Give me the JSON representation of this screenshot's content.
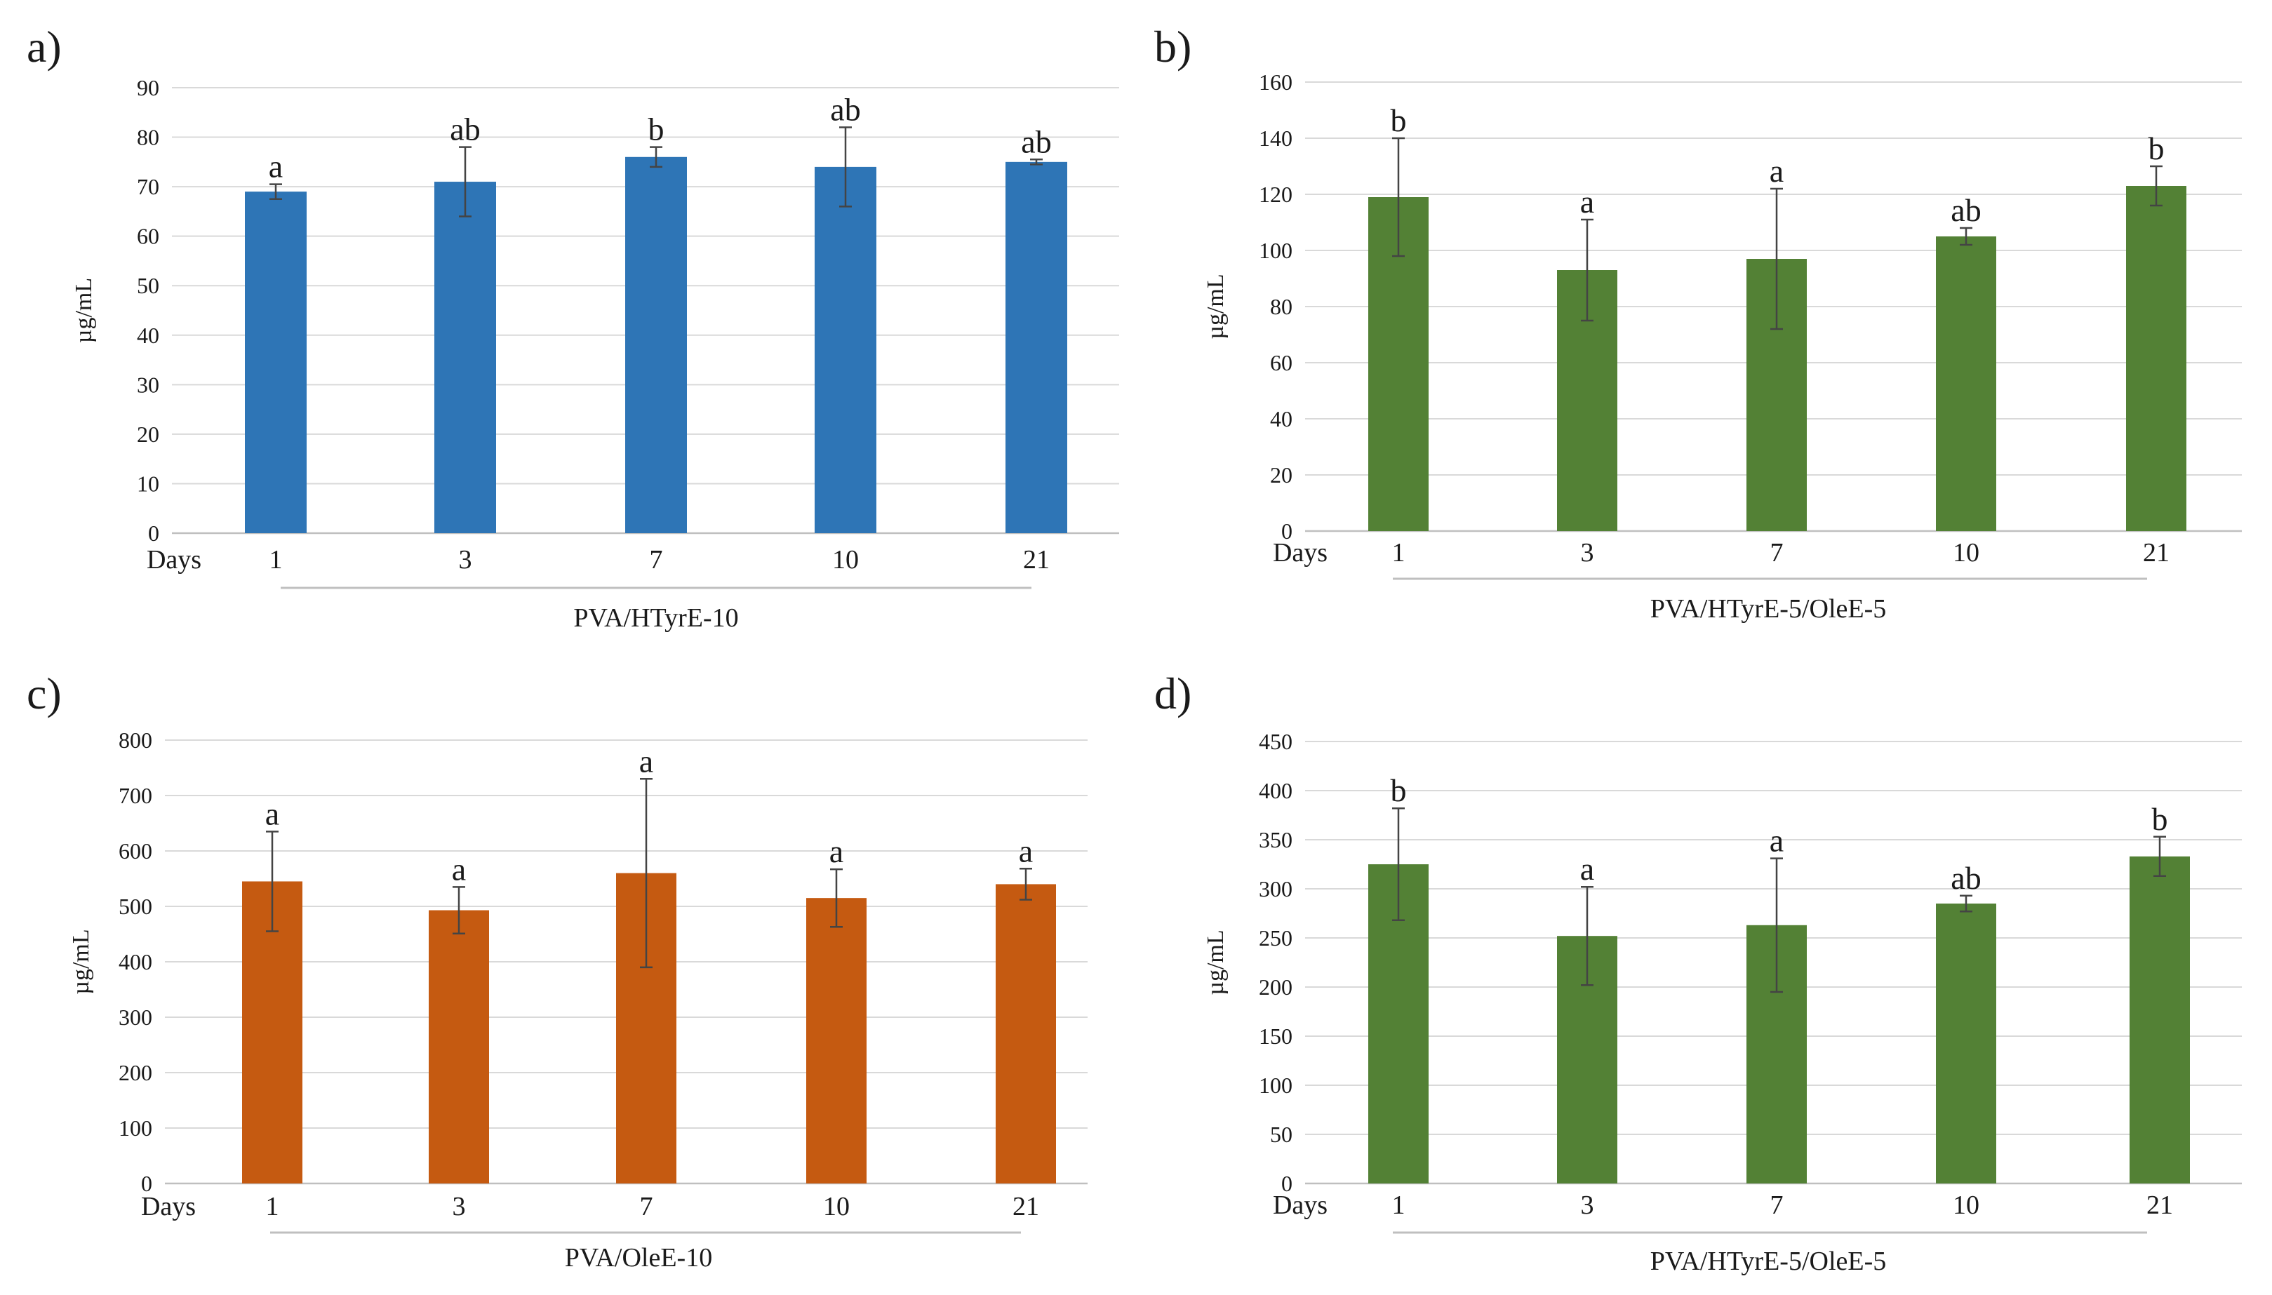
{
  "figure": {
    "panels": [
      "a)",
      "b)",
      "c)",
      "d)"
    ]
  },
  "chart_data": [
    {
      "type": "bar",
      "panel": "a)",
      "title": "",
      "xlabel": "PVA/HTyrE-10",
      "ylabel": "µg/mL",
      "x_axis_label": "Days",
      "categories": [
        "1",
        "3",
        "7",
        "10",
        "21"
      ],
      "values": [
        69,
        71,
        76,
        74,
        75
      ],
      "errors": [
        1.5,
        7,
        2,
        8,
        0.5
      ],
      "significance": [
        "a",
        "ab",
        "b",
        "ab",
        "ab"
      ],
      "ylim": [
        0,
        90
      ],
      "yticks": [
        0,
        10,
        20,
        30,
        40,
        50,
        60,
        70,
        80,
        90
      ],
      "color": "#2e75b6",
      "grid": true
    },
    {
      "type": "bar",
      "panel": "b)",
      "title": "",
      "xlabel": "PVA/HTyrE-5/OleE-5",
      "ylabel": "µg/mL",
      "x_axis_label": "Days",
      "categories": [
        "1",
        "3",
        "7",
        "10",
        "21"
      ],
      "values": [
        119,
        93,
        97,
        105,
        123
      ],
      "errors": [
        21,
        18,
        25,
        3,
        7
      ],
      "significance": [
        "b",
        "a",
        "a",
        "ab",
        "b"
      ],
      "ylim": [
        0,
        160
      ],
      "yticks": [
        0,
        20,
        40,
        60,
        80,
        100,
        120,
        140,
        160
      ],
      "color": "#538135",
      "grid": true
    },
    {
      "type": "bar",
      "panel": "c)",
      "title": "",
      "xlabel": "PVA/OleE-10",
      "ylabel": "µg/mL",
      "x_axis_label": "Days",
      "categories": [
        "1",
        "3",
        "7",
        "10",
        "21"
      ],
      "values": [
        545,
        493,
        560,
        515,
        540
      ],
      "errors": [
        90,
        42,
        170,
        52,
        28
      ],
      "significance": [
        "a",
        "a",
        "a",
        "a",
        "a"
      ],
      "ylim": [
        0,
        800
      ],
      "yticks": [
        0,
        100,
        200,
        300,
        400,
        500,
        600,
        700,
        800
      ],
      "color": "#c55a11",
      "grid": true
    },
    {
      "type": "bar",
      "panel": "d)",
      "title": "",
      "xlabel": "PVA/HTyrE-5/OleE-5",
      "ylabel": "µg/mL",
      "x_axis_label": "Days",
      "categories": [
        "1",
        "3",
        "7",
        "10",
        "21"
      ],
      "values": [
        325,
        252,
        263,
        285,
        333
      ],
      "errors": [
        57,
        50,
        68,
        8,
        20
      ],
      "significance": [
        "b",
        "a",
        "a",
        "ab",
        "b"
      ],
      "ylim": [
        0,
        450
      ],
      "yticks": [
        0,
        50,
        100,
        150,
        200,
        250,
        300,
        350,
        400,
        450
      ],
      "color": "#538135",
      "grid": true
    }
  ]
}
